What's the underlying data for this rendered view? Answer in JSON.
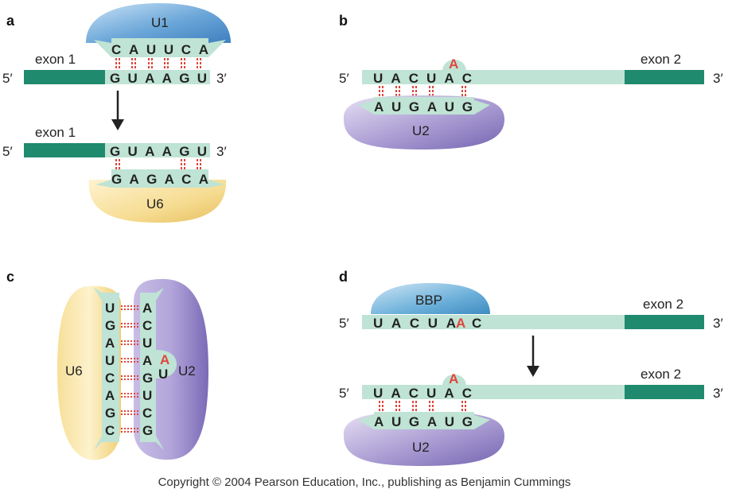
{
  "panel_a": {
    "letter": "a",
    "snrna_top": "U1",
    "snrna_top_seq": "CAUUCA",
    "exon_label": "exon 1",
    "five_prime": "5′",
    "three_prime": "3′",
    "rna_seq": "GUAAGU",
    "exon_label_2": "exon 1",
    "five_prime_2": "5′",
    "three_prime_2": "3′",
    "rna_seq_2": "GUAAGU",
    "snrna_bottom": "U6",
    "snrna_bottom_seq": "GAGACA"
  },
  "panel_b": {
    "letter": "b",
    "five_prime": "5′",
    "three_prime": "3′",
    "exon_label": "exon 2",
    "branch_seq": "UACUAC",
    "bulged_a": "A",
    "snrna": "U2",
    "snrna_seq": "AUGAUG"
  },
  "panel_c": {
    "letter": "c",
    "u6_label": "U6",
    "u2_label": "U2",
    "u6_seq": [
      "U",
      "G",
      "A",
      "U",
      "C",
      "A",
      "G",
      "C"
    ],
    "u2_seq": [
      "A",
      "C",
      "U",
      "A",
      "G",
      "U",
      "C",
      "G"
    ],
    "u2_extra": "U",
    "bulged_a": "A"
  },
  "panel_d": {
    "letter": "d",
    "protein": "BBP",
    "five_prime": "5′",
    "three_prime": "3′",
    "exon_label": "exon 2",
    "branch_seq_prefix": "UACUA",
    "bulged_a": "A",
    "branch_seq_suffix": "C",
    "five_prime_2": "5′",
    "three_prime_2": "3′",
    "exon_label_2": "exon 2",
    "branch_seq_2": "UACUAC",
    "bulged_a_2": "A",
    "snrna": "U2",
    "snrna_seq": "AUGAUG"
  },
  "copyright": "Copyright © 2004 Pearson Education, Inc., publishing as Benjamin Cummings",
  "colors": {
    "exon_dark": "#1f8a6e",
    "rna_light": "#bfe3d4",
    "u1_blue": "#6aa6d8",
    "u6_yellow": "#f3d68a",
    "u2_purple": "#9b8ac7",
    "bbp_blue": "#5fa3cf",
    "bond_red": "#e0463c"
  }
}
